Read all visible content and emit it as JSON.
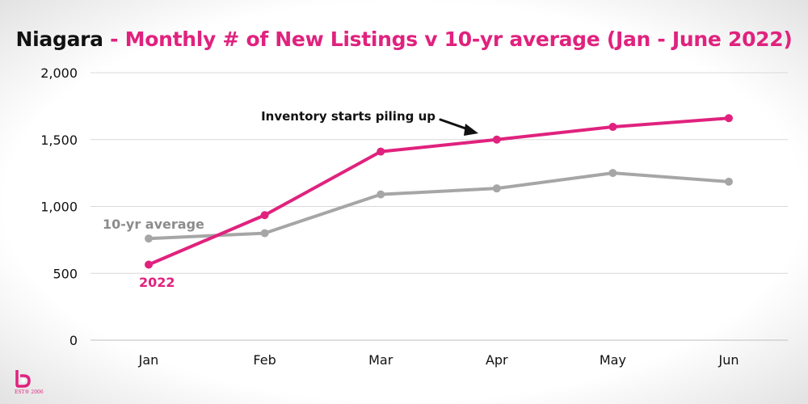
{
  "title": {
    "region": "Niagara",
    "rest": " - Monthly # of New Listings v 10-yr average (Jan - June 2022)"
  },
  "colors": {
    "accent": "#e0227e",
    "average": "#a6a6a6",
    "grid": "#d9d9d9",
    "text": "#111111"
  },
  "annotation": {
    "text": "Inventory starts piling up"
  },
  "logo": {
    "text": "EST® 2006"
  },
  "chart_data": {
    "type": "line",
    "categories": [
      "Jan",
      "Feb",
      "Mar",
      "Apr",
      "May",
      "Jun"
    ],
    "series": [
      {
        "name": "2022",
        "values": [
          565,
          935,
          1410,
          1500,
          1595,
          1660
        ],
        "color": "#e0227e"
      },
      {
        "name": "10-yr average",
        "values": [
          760,
          800,
          1090,
          1135,
          1250,
          1185
        ],
        "color": "#a6a6a6"
      }
    ],
    "yticks": [
      0,
      500,
      1000,
      1500,
      2000
    ],
    "ytick_labels": [
      "0",
      "500",
      "1,000",
      "1,500",
      "2,000"
    ],
    "ylim": [
      0,
      2000
    ],
    "grid": true,
    "xlabel": "",
    "ylabel": ""
  }
}
